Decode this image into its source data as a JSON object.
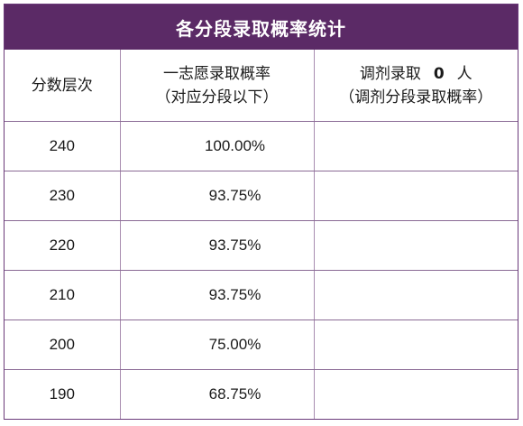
{
  "title": "各分段录取概率统计",
  "headers": {
    "col1": "分数层次",
    "col2_line1": "一志愿录取概率",
    "col2_line2": "（对应分段以下）",
    "col3_prefix": "调剂录取",
    "col3_count": "0",
    "col3_suffix": "人",
    "col3_line2": "（调剂分段录取概率）"
  },
  "rows": [
    {
      "score": "240",
      "rate": "100.00%",
      "adjust": ""
    },
    {
      "score": "230",
      "rate": "93.75%",
      "adjust": ""
    },
    {
      "score": "220",
      "rate": "93.75%",
      "adjust": ""
    },
    {
      "score": "210",
      "rate": "93.75%",
      "adjust": ""
    },
    {
      "score": "200",
      "rate": "75.00%",
      "adjust": ""
    },
    {
      "score": "190",
      "rate": "68.75%",
      "adjust": ""
    }
  ],
  "colors": {
    "header_bg": "#5b2a66",
    "border": "#8a6a95"
  }
}
